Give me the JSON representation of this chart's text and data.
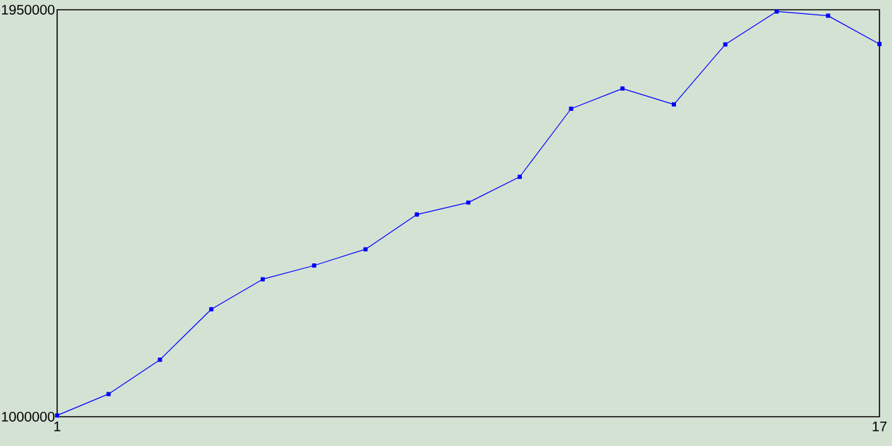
{
  "chart_data": {
    "type": "line",
    "x": [
      1,
      2,
      3,
      4,
      5,
      6,
      7,
      8,
      9,
      10,
      11,
      12,
      13,
      14,
      15,
      16,
      17
    ],
    "series": [
      {
        "color": "#0000ff",
        "values": [
          1003000,
          1053000,
          1133000,
          1251000,
          1321000,
          1353000,
          1391000,
          1472000,
          1500000,
          1560000,
          1719000,
          1766000,
          1729000,
          1869000,
          1946000,
          1936000,
          1870000
        ]
      }
    ],
    "xlim": [
      1,
      17
    ],
    "xticks": [
      1,
      17
    ],
    "ylim": [
      1000000,
      1950000
    ],
    "yticks": [
      1000000,
      1950000
    ],
    "marker": "square"
  }
}
